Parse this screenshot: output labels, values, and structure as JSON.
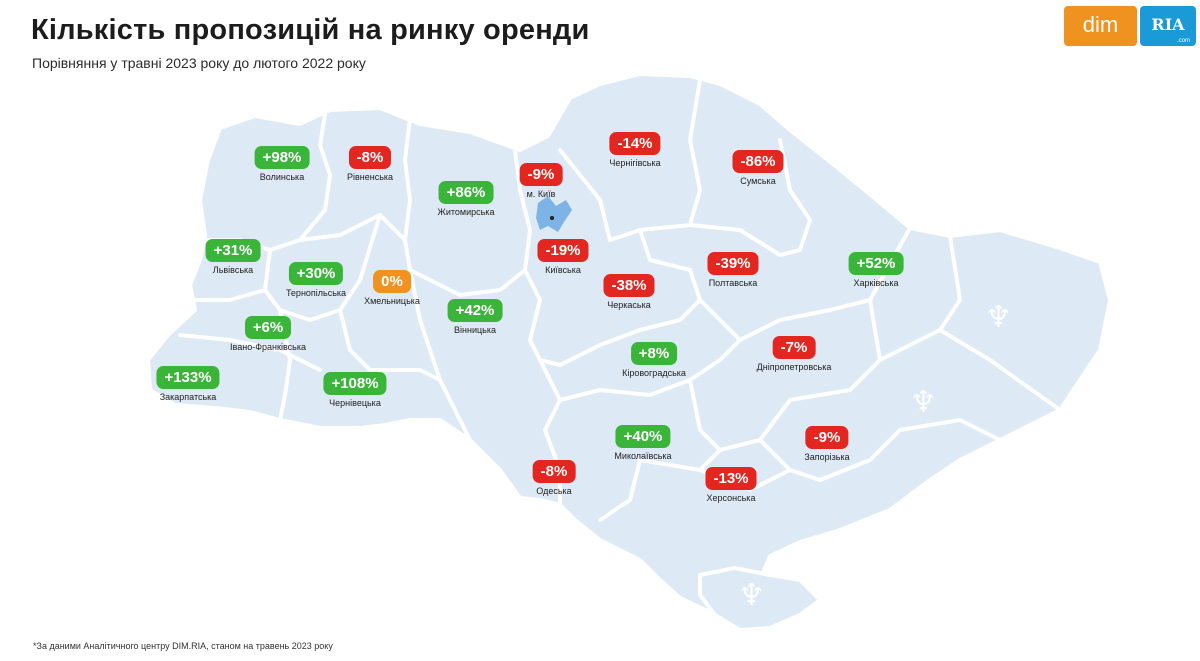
{
  "header": {
    "title": "Кількість пропозицій на ринку оренди",
    "subtitle": "Порівняння у травні 2023 року до лютого 2022 року"
  },
  "logo": {
    "left_text": "dim",
    "right_text": "RIA",
    "right_small": ".com"
  },
  "footnote": "*За даними Аналітичного центру DIM.RIA, станом на травень 2023 року",
  "colors": {
    "positive": "#3ab539",
    "negative": "#e3261f",
    "neutral": "#f0921f",
    "map_fill": "#dde9f5"
  },
  "regions": [
    {
      "id": "volynska",
      "name": "Волинська",
      "value": "+98%",
      "status": "positive"
    },
    {
      "id": "rivnenska",
      "name": "Рівненська",
      "value": "-8%",
      "status": "negative"
    },
    {
      "id": "zhytomyrska",
      "name": "Житомирська",
      "value": "+86%",
      "status": "positive"
    },
    {
      "id": "kyiv-city",
      "name": "м. Київ",
      "value": "-9%",
      "status": "negative"
    },
    {
      "id": "chernihivska",
      "name": "Чернігівська",
      "value": "-14%",
      "status": "negative"
    },
    {
      "id": "sumska",
      "name": "Сумська",
      "value": "-86%",
      "status": "negative"
    },
    {
      "id": "lvivska",
      "name": "Львівська",
      "value": "+31%",
      "status": "positive"
    },
    {
      "id": "ternopilska",
      "name": "Тернопільська",
      "value": "+30%",
      "status": "positive"
    },
    {
      "id": "khmelnytska",
      "name": "Хмельницька",
      "value": "0%",
      "status": "neutral"
    },
    {
      "id": "kyivska",
      "name": "Київська",
      "value": "-19%",
      "status": "negative"
    },
    {
      "id": "cherkaska",
      "name": "Черкаська",
      "value": "-38%",
      "status": "negative"
    },
    {
      "id": "poltavska",
      "name": "Полтавська",
      "value": "-39%",
      "status": "negative"
    },
    {
      "id": "kharkivska",
      "name": "Харківська",
      "value": "+52%",
      "status": "positive"
    },
    {
      "id": "vinnytska",
      "name": "Вінницька",
      "value": "+42%",
      "status": "positive"
    },
    {
      "id": "ivano-frankivska",
      "name": "Івано-Франківська",
      "value": "+6%",
      "status": "positive"
    },
    {
      "id": "zakarpatska",
      "name": "Закарпатська",
      "value": "+133%",
      "status": "positive"
    },
    {
      "id": "chernivetska",
      "name": "Чернівецька",
      "value": "+108%",
      "status": "positive"
    },
    {
      "id": "kirovohradska",
      "name": "Кіровоградська",
      "value": "+8%",
      "status": "positive"
    },
    {
      "id": "dnipropetrovska",
      "name": "Дніпропетровська",
      "value": "-7%",
      "status": "negative"
    },
    {
      "id": "mykolaivska",
      "name": "Миколаївська",
      "value": "+40%",
      "status": "positive"
    },
    {
      "id": "zaporizka",
      "name": "Запорізька",
      "value": "-9%",
      "status": "negative"
    },
    {
      "id": "odeska",
      "name": "Одеська",
      "value": "-8%",
      "status": "negative"
    },
    {
      "id": "khersonska",
      "name": "Херсонська",
      "value": "-13%",
      "status": "negative"
    }
  ]
}
